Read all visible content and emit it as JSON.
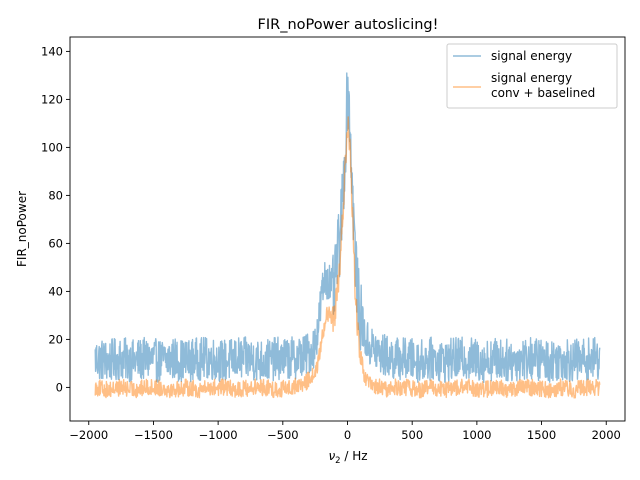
{
  "chart_data": {
    "type": "line",
    "title": "FIR_noPower autoslicing!",
    "xlabel_symbol": "ν",
    "xlabel_sub": "2",
    "xlabel_rest": " / Hz",
    "ylabel": "FIR_noPower",
    "xlim": [
      -2145,
      2145
    ],
    "ylim": [
      -14,
      146
    ],
    "xticks": [
      -2000,
      -1500,
      -1000,
      -500,
      0,
      500,
      1000,
      1500,
      2000
    ],
    "xtick_labels": [
      "−2000",
      "−1500",
      "−1000",
      "−500",
      "0",
      "500",
      "1000",
      "1500",
      "2000"
    ],
    "yticks": [
      0,
      20,
      40,
      60,
      80,
      100,
      120,
      140
    ],
    "ytick_labels": [
      "0",
      "20",
      "40",
      "60",
      "80",
      "100",
      "120",
      "140"
    ],
    "grid": false,
    "legend_position": "top-right",
    "series": [
      {
        "name": "signal energy",
        "color": "#1f77b4",
        "opacity": 0.5,
        "x": [
          -1950,
          -1850,
          -1750,
          -1650,
          -1550,
          -1450,
          -1350,
          -1250,
          -1150,
          -1050,
          -950,
          -850,
          -750,
          -650,
          -550,
          -450,
          -350,
          -300,
          -250,
          -220,
          -200,
          -180,
          -160,
          -140,
          -120,
          -100,
          -80,
          -60,
          -40,
          -20,
          0,
          10,
          20,
          40,
          60,
          80,
          100,
          120,
          140,
          160,
          180,
          200,
          250,
          300,
          350,
          450,
          550,
          650,
          750,
          850,
          950,
          1050,
          1150,
          1250,
          1350,
          1450,
          1550,
          1650,
          1750,
          1850,
          1950
        ],
        "y": [
          12,
          11,
          12,
          11,
          12,
          11,
          12,
          11,
          12,
          12,
          11,
          12,
          12,
          11,
          12,
          12,
          13,
          14,
          18,
          28,
          38,
          44,
          46,
          44,
          40,
          42,
          55,
          60,
          78,
          95,
          125,
          120,
          108,
          80,
          55,
          38,
          30,
          24,
          20,
          18,
          17,
          16,
          14,
          13,
          12,
          12,
          11,
          12,
          11,
          12,
          12,
          11,
          12,
          11,
          12,
          12,
          11,
          12,
          11,
          12,
          12
        ],
        "noise_amplitude": 9,
        "noise_floor": 2
      },
      {
        "name": "signal energy\nconv + baselined",
        "color": "#ff7f0e",
        "opacity": 0.5,
        "x": [
          -1950,
          -1850,
          -1750,
          -1650,
          -1550,
          -1450,
          -1350,
          -1250,
          -1150,
          -1050,
          -950,
          -850,
          -750,
          -650,
          -550,
          -450,
          -350,
          -300,
          -250,
          -220,
          -200,
          -180,
          -160,
          -140,
          -120,
          -100,
          -80,
          -60,
          -40,
          -20,
          0,
          10,
          20,
          40,
          60,
          80,
          100,
          120,
          140,
          160,
          180,
          200,
          250,
          300,
          350,
          450,
          550,
          650,
          750,
          850,
          950,
          1050,
          1150,
          1250,
          1350,
          1450,
          1550,
          1650,
          1750,
          1850,
          1950
        ],
        "y": [
          0,
          -1,
          0,
          -1,
          0,
          0,
          -1,
          0,
          -1,
          0,
          0,
          -1,
          0,
          0,
          -1,
          0,
          1,
          3,
          6,
          12,
          20,
          26,
          30,
          30,
          28,
          30,
          40,
          48,
          68,
          90,
          108,
          107,
          98,
          70,
          40,
          22,
          12,
          6,
          3,
          2,
          1,
          0,
          0,
          -1,
          0,
          0,
          -1,
          0,
          -1,
          0,
          0,
          -1,
          0,
          -1,
          0,
          0,
          -1,
          0,
          -1,
          0,
          0
        ],
        "noise_amplitude": 3.5,
        "noise_floor": -7
      }
    ]
  }
}
